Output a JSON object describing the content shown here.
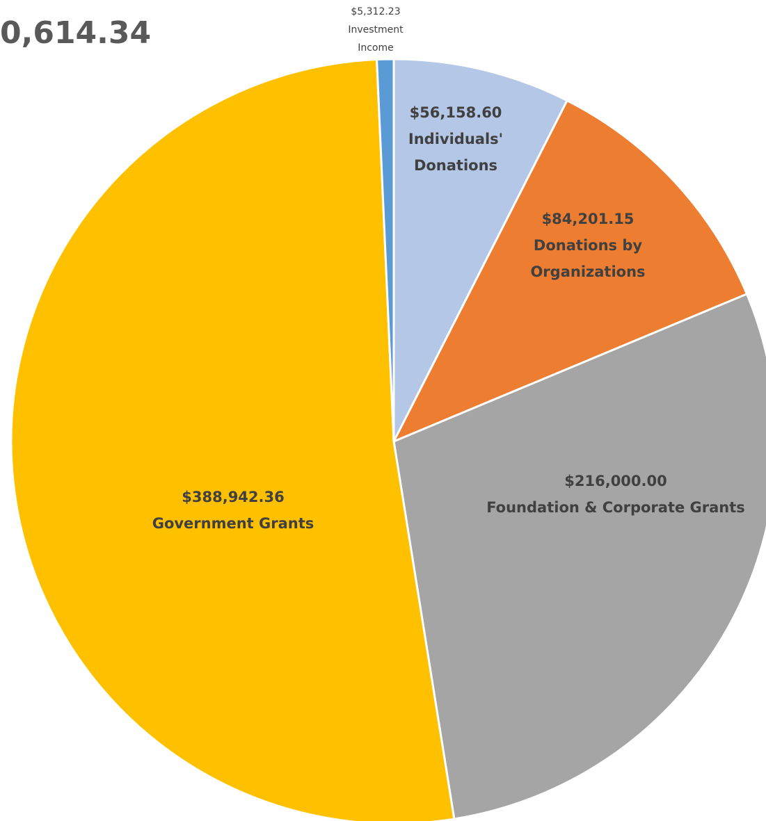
{
  "chart_data": {
    "type": "pie",
    "title": "0,614.34",
    "categories": [
      "Individuals' Donations",
      "Donations by Organizations",
      "Foundation & Corporate Grants",
      "Government Grants",
      "Investment Income"
    ],
    "values": [
      56158.6,
      84201.15,
      216000.0,
      388942.36,
      5312.23
    ],
    "value_labels": [
      "$56,158.60",
      "$84,201.15",
      "$216,000.00",
      "$388,942.36",
      "$5,312.23"
    ],
    "colors": [
      "#b4c7e7",
      "#ed7d31",
      "#a5a5a5",
      "#ffc000",
      "#5b9bd5"
    ]
  }
}
